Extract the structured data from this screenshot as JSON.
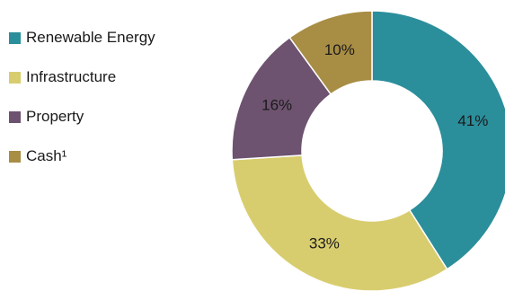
{
  "chart_data": {
    "type": "pie",
    "donut": true,
    "title": "",
    "legend_position": "left",
    "categories": [
      "Renewable Energy",
      "Infrastructure",
      "Property",
      "Cash¹"
    ],
    "values": [
      41,
      33,
      16,
      10
    ],
    "data_labels": [
      "41%",
      "33%",
      "16%",
      "10%"
    ],
    "colors": [
      "#2b8e9b",
      "#d8cd6e",
      "#6d5370",
      "#a88d45"
    ]
  }
}
